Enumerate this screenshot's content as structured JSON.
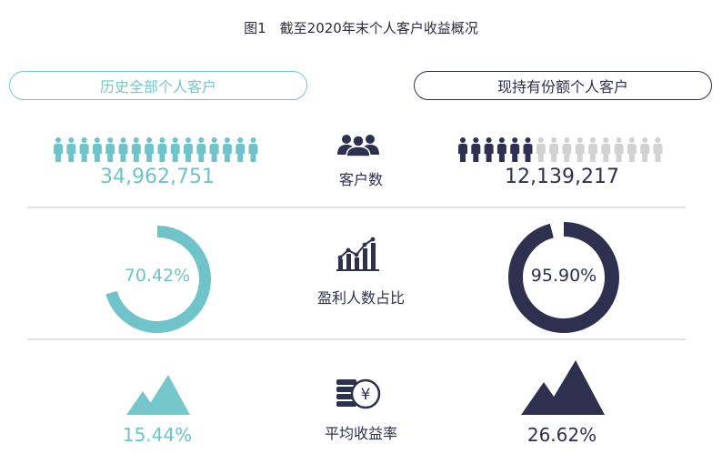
{
  "title": "图1　截至2020年末个人客户收益概况",
  "header": {
    "left_label": "历史全部个人客户",
    "right_label": "现持有份额个人客户"
  },
  "rows": {
    "customers": {
      "label": "客户数",
      "icon": "people-group-icon",
      "left_value": "34,962,751",
      "right_value": "12,139,217"
    },
    "profit_ratio": {
      "label": "盈利人数占比",
      "icon": "rising-bar-chart-icon",
      "left_value": "70.42%",
      "right_value": "95.90%"
    },
    "avg_return": {
      "label": "平均收益率",
      "icon": "coin-stack-yuan-icon",
      "left_value": "15.44%",
      "right_value": "26.62%"
    }
  },
  "colors": {
    "teal": "#6fc3c9",
    "navy": "#2e3050",
    "grey": "#d2d2d2"
  },
  "chart_data": {
    "type": "table",
    "columns": [
      "历史全部个人客户",
      "现持有份额个人客户"
    ],
    "rows": [
      {
        "metric": "客户数",
        "values": [
          34962751,
          12139217
        ]
      },
      {
        "metric": "盈利人数占比",
        "values": [
          70.42,
          95.9
        ],
        "unit": "%"
      },
      {
        "metric": "平均收益率",
        "values": [
          15.44,
          26.62
        ],
        "unit": "%"
      }
    ]
  }
}
